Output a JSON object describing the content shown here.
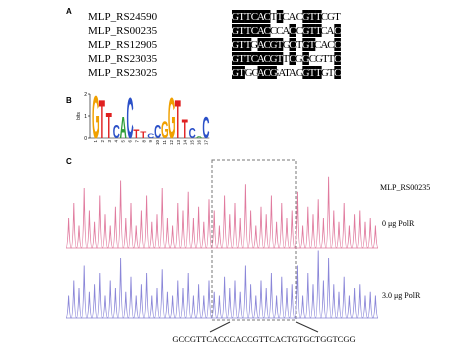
{
  "panel_a": {
    "label": "A",
    "rows": [
      {
        "name": "MLP_RS24590",
        "sequence": "GTTCACTTCACGTTCGT"
      },
      {
        "name": "MLP_RS00235",
        "sequence": "GTTCACCCACCGTTCAC"
      },
      {
        "name": "MLP_RS12905",
        "sequence": "GTTGACGTGCTGTCACC"
      },
      {
        "name": "MLP_RS23035",
        "sequence": "GTTCACGTTCGGCGTTC"
      },
      {
        "name": "MLP_RS23025",
        "sequence": "GTGGACGATAGGTTGTC"
      }
    ]
  },
  "panel_b": {
    "label": "B",
    "y_label": "bits",
    "ylim": [
      0,
      2
    ],
    "yticks": [
      0,
      1,
      2
    ],
    "positions": [
      "1",
      "2",
      "3",
      "4",
      "5",
      "6",
      "7",
      "8",
      "9",
      "10",
      "11",
      "12",
      "13",
      "14",
      "15",
      "16",
      "17"
    ],
    "letters": [
      "G",
      "T",
      "T",
      "C",
      "A",
      "C",
      "T",
      "T",
      "C",
      "C",
      "G",
      "G",
      "T",
      "T",
      "C",
      "A",
      "C"
    ],
    "heights": [
      2.0,
      1.8,
      1.2,
      0.6,
      1.0,
      1.9,
      0.4,
      0.3,
      0.2,
      0.6,
      0.8,
      1.9,
      1.8,
      0.9,
      0.5,
      0.1,
      1.0
    ],
    "colors": {
      "A": "#2e9e3a",
      "C": "#2b50c8",
      "G": "#f0a000",
      "T": "#e02020"
    }
  },
  "panel_c": {
    "label": "C",
    "gene": "MLP_RS00235",
    "ylim": [
      0,
      1
    ],
    "traces": [
      {
        "name": "0 μg PolR",
        "color": "#e07a9e",
        "values": [
          0.4,
          0.6,
          0.3,
          0.8,
          0.5,
          0.35,
          0.7,
          0.45,
          0.3,
          0.55,
          0.9,
          0.4,
          0.6,
          0.3,
          0.5,
          0.7,
          0.35,
          0.45,
          0.8,
          0.4,
          0.3,
          0.6,
          0.5,
          0.75,
          0.4,
          0.55,
          0.35,
          0.65,
          0.5,
          0.3,
          0.7,
          0.45,
          0.6,
          0.4,
          0.85,
          0.5,
          0.3,
          0.55,
          0.45,
          0.7,
          0.35,
          0.6,
          0.4,
          0.5,
          0.75,
          0.3,
          0.55,
          0.45,
          0.65,
          0.4,
          0.95,
          0.5,
          0.35,
          0.6,
          0.3,
          0.45,
          0.5,
          0.35,
          0.4,
          0.3
        ]
      },
      {
        "name": "3.0 μg PolR",
        "color": "#8a86d8",
        "values": [
          0.3,
          0.5,
          0.4,
          0.7,
          0.35,
          0.45,
          0.6,
          0.3,
          0.5,
          0.4,
          0.8,
          0.35,
          0.55,
          0.3,
          0.45,
          0.6,
          0.3,
          0.4,
          0.65,
          0.35,
          0.3,
          0.5,
          0.4,
          0.6,
          0.3,
          0.45,
          0.3,
          0.5,
          0.35,
          0.3,
          0.55,
          0.4,
          0.5,
          0.35,
          0.7,
          0.45,
          0.3,
          0.5,
          0.4,
          0.6,
          0.3,
          0.55,
          0.4,
          0.45,
          0.7,
          0.3,
          0.6,
          0.45,
          0.9,
          0.5,
          0.8,
          0.45,
          0.35,
          0.55,
          0.3,
          0.4,
          0.45,
          0.3,
          0.35,
          0.3
        ]
      }
    ],
    "sequence": "GCCGTTCACCCACCGTTCACTGTGCTGGTCGG"
  }
}
